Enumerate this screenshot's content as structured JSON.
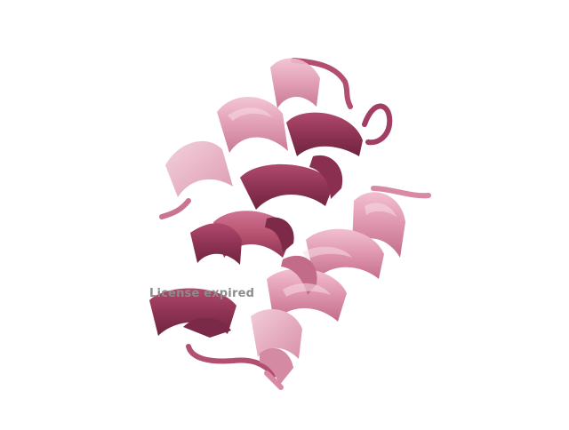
{
  "viewer": {
    "watermark_text": "License expired",
    "background_color": "#ffffff"
  },
  "molecule": {
    "representation": "cartoon",
    "colors": {
      "dark": "#9a3a5c",
      "mid": "#c25d80",
      "light": "#d98aa3",
      "pale": "#e8b0c2"
    }
  }
}
